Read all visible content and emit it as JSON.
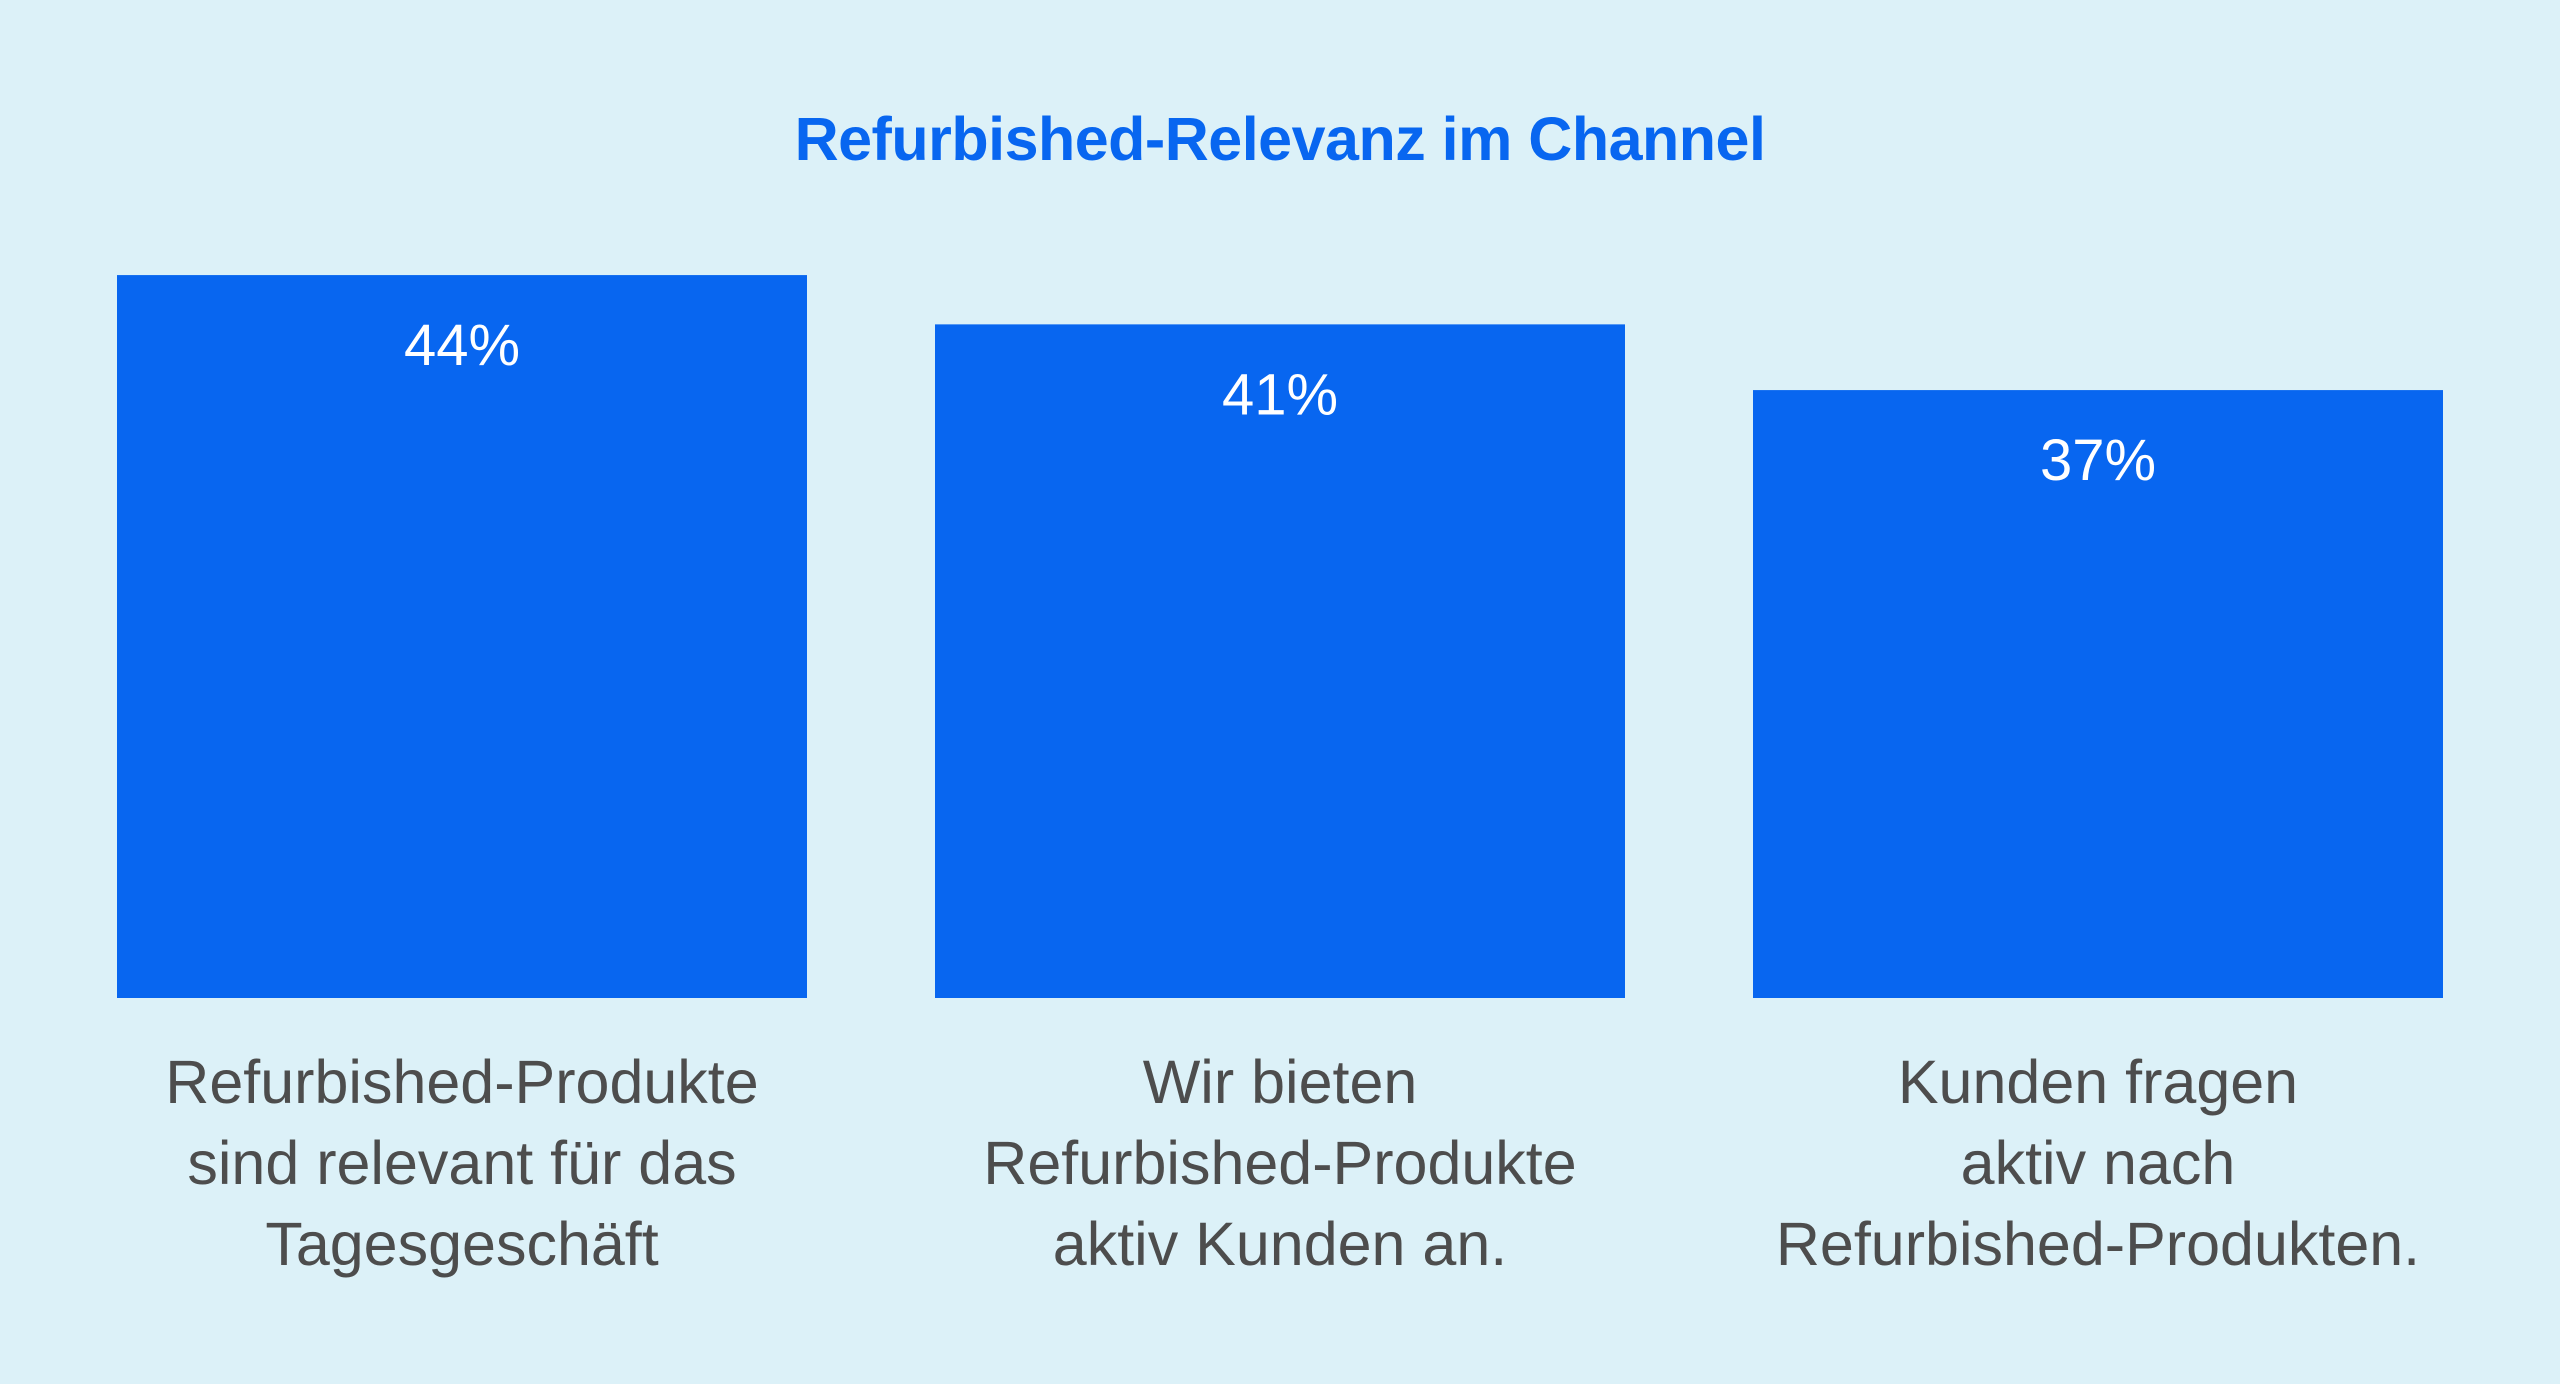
{
  "chart_data": {
    "type": "bar",
    "title": "Refurbished-Relevanz im Channel",
    "categories": [
      "Refurbished-Produkte sind relevant für das Tagesgeschäft",
      "Wir bieten Refurbished-Produkte aktiv Kunden an.",
      "Kunden fragen aktiv nach Refurbished-Produkten."
    ],
    "category_lines": [
      [
        "Refurbished-Produkte",
        "sind relevant für das",
        "Tagesgeschäft"
      ],
      [
        "Wir bieten",
        "Refurbished-Produkte",
        "aktiv Kunden an."
      ],
      [
        "Kunden fragen",
        "aktiv nach",
        "Refurbished-Produkten."
      ]
    ],
    "values": [
      44,
      41,
      37
    ],
    "value_labels": [
      "44%",
      "41%",
      "37%"
    ],
    "unit": "%",
    "ylim": [
      0,
      44
    ],
    "grid": false,
    "legend": "none",
    "xlabel": "",
    "ylabel": ""
  },
  "colors": {
    "background": "#dcf1f8",
    "bar": "#0866f0",
    "title": "#0866f0",
    "value_label": "#ffffff",
    "category_label": "#4d4d4d"
  }
}
